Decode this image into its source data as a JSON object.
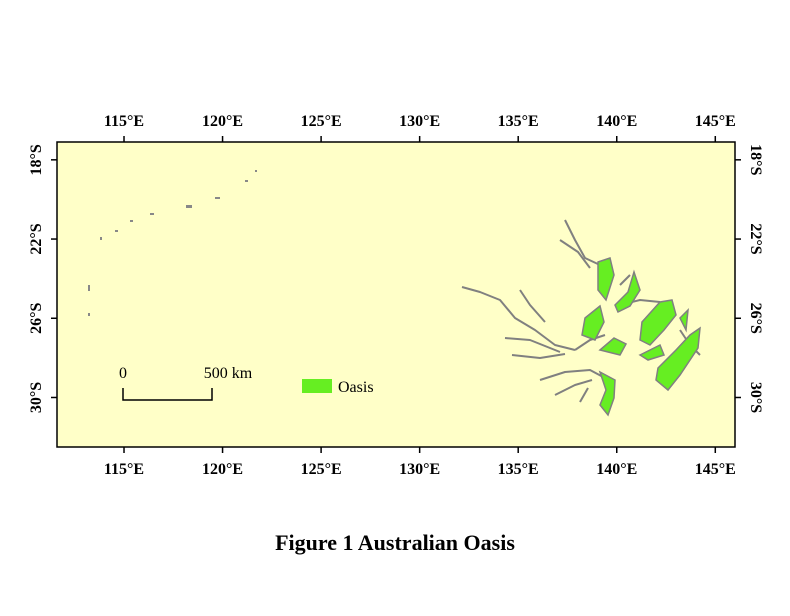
{
  "figure": {
    "caption": "Figure 1  Australian Oasis",
    "map": {
      "xlim": [
        111.6,
        146
      ],
      "ylim": [
        -32.5,
        -17.1
      ],
      "xticks": [
        {
          "value": 115,
          "label": "115°E"
        },
        {
          "value": 120,
          "label": "120°E"
        },
        {
          "value": 125,
          "label": "125°E"
        },
        {
          "value": 130,
          "label": "130°E"
        },
        {
          "value": 135,
          "label": "135°E"
        },
        {
          "value": 140,
          "label": "140°E"
        },
        {
          "value": 145,
          "label": "145°E"
        }
      ],
      "yticks": [
        {
          "value": -18,
          "label": "18°S"
        },
        {
          "value": -22,
          "label": "22°S"
        },
        {
          "value": -26,
          "label": "26°S"
        },
        {
          "value": -30,
          "label": "30°S"
        }
      ],
      "background": "#ffffc8",
      "scale_bar": {
        "start": "0",
        "end": "500 km"
      },
      "legend": {
        "label": "Oasis",
        "color": "#66ee22"
      }
    }
  }
}
